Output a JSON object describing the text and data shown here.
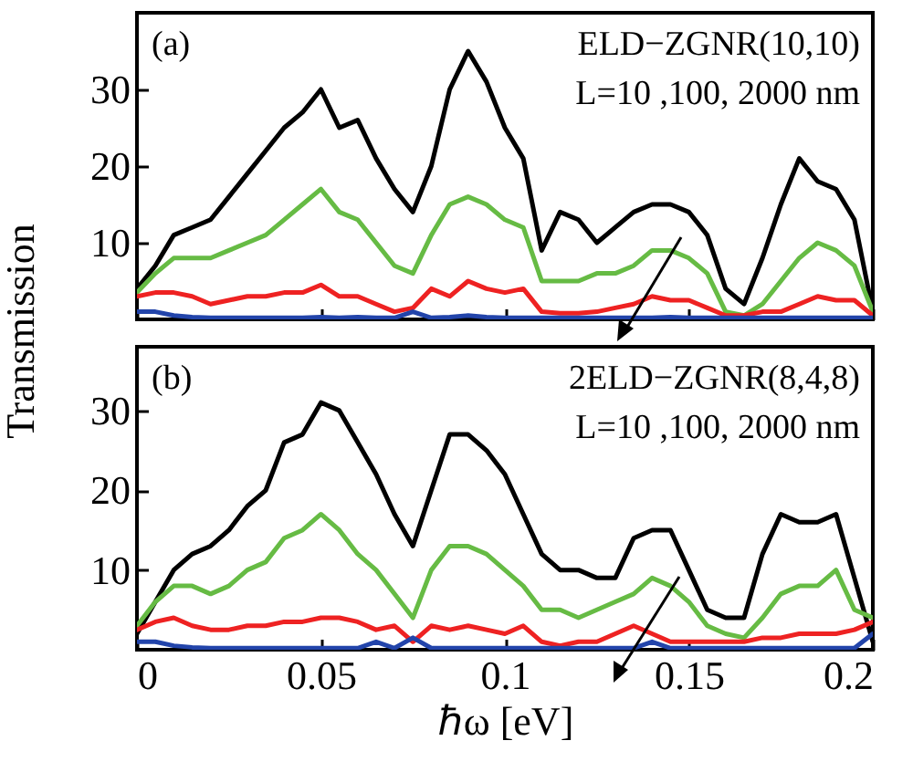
{
  "chart_data": [
    {
      "type": "line",
      "ylabel": "Transmission",
      "annotations": [
        "(a)",
        "ELD−ZGNR(10,10)",
        "L=10 ,100, 2000 nm"
      ],
      "x": [
        0,
        0.005,
        0.01,
        0.015,
        0.02,
        0.025,
        0.03,
        0.035,
        0.04,
        0.045,
        0.05,
        0.055,
        0.06,
        0.065,
        0.07,
        0.075,
        0.08,
        0.085,
        0.09,
        0.095,
        0.1,
        0.105,
        0.11,
        0.115,
        0.12,
        0.125,
        0.13,
        0.135,
        0.14,
        0.145,
        0.15,
        0.155,
        0.16,
        0.165,
        0.17,
        0.175,
        0.18,
        0.185,
        0.19,
        0.195,
        0.2
      ],
      "xlim": [
        0,
        0.2
      ],
      "xticks": [
        0,
        0.05,
        0.1,
        0.15,
        0.2
      ],
      "ylim": [
        0,
        40
      ],
      "yticks": [
        10,
        20,
        30
      ],
      "tick_labels": "y",
      "series": [
        {
          "color": "#000000",
          "values": [
            4,
            7,
            11,
            12,
            13,
            16,
            19,
            22,
            25,
            27,
            30,
            25,
            26,
            21,
            17,
            14,
            20,
            30,
            35,
            31,
            25,
            21,
            9,
            14,
            13,
            10,
            12,
            14,
            15,
            15,
            14,
            11,
            4,
            2,
            8,
            15,
            21,
            18,
            17,
            13,
            1
          ]
        },
        {
          "color": "#66bb44",
          "values": [
            3.5,
            6,
            8,
            8,
            8,
            9,
            10,
            11,
            13,
            15,
            17,
            14,
            13,
            10,
            7,
            6,
            11,
            15,
            16,
            15,
            13,
            12,
            5,
            5,
            5,
            6,
            6,
            7,
            9,
            9,
            8,
            6,
            1,
            0.5,
            2,
            5,
            8,
            10,
            9,
            7,
            1
          ]
        },
        {
          "color": "#ee2222",
          "values": [
            3,
            3.5,
            3.5,
            3,
            2,
            2.5,
            3,
            3,
            3.5,
            3.5,
            4.5,
            3,
            3,
            2,
            1,
            1.5,
            4,
            3,
            5,
            4,
            3.5,
            4,
            1,
            0.8,
            0.8,
            1,
            1.5,
            2,
            3,
            2.5,
            2.5,
            1.5,
            0.5,
            0.5,
            1,
            1,
            2,
            3,
            2.5,
            2.5,
            0.5
          ]
        },
        {
          "color": "#2244aa",
          "values": [
            1,
            1,
            0.5,
            0.3,
            0.2,
            0.2,
            0.2,
            0.2,
            0.2,
            0.2,
            0.3,
            0.2,
            0.3,
            0.2,
            0.2,
            1,
            0.2,
            0.3,
            0.5,
            0.3,
            0.2,
            0.2,
            0.2,
            0.2,
            0.2,
            0.2,
            0.2,
            0.2,
            0.2,
            0.3,
            0.2,
            0.2,
            0.2,
            0.2,
            0.2,
            0.2,
            0.2,
            0.2,
            0.2,
            0.2,
            0.2
          ]
        }
      ]
    },
    {
      "type": "line",
      "xlabel": "ℏω [eV]",
      "annotations": [
        "(b)",
        "2ELD−ZGNR(8,4,8)",
        "L=10 ,100, 2000 nm"
      ],
      "x": [
        0,
        0.005,
        0.01,
        0.015,
        0.02,
        0.025,
        0.03,
        0.035,
        0.04,
        0.045,
        0.05,
        0.055,
        0.06,
        0.065,
        0.07,
        0.075,
        0.08,
        0.085,
        0.09,
        0.095,
        0.1,
        0.105,
        0.11,
        0.115,
        0.12,
        0.125,
        0.13,
        0.135,
        0.14,
        0.145,
        0.15,
        0.155,
        0.16,
        0.165,
        0.17,
        0.175,
        0.18,
        0.185,
        0.19,
        0.195,
        0.2
      ],
      "xlim": [
        0,
        0.2
      ],
      "xticks": [
        0,
        0.05,
        0.1,
        0.15,
        0.2
      ],
      "ylim": [
        0,
        38
      ],
      "yticks": [
        10,
        20,
        30
      ],
      "series": [
        {
          "color": "#000000",
          "values": [
            2,
            6,
            10,
            12,
            13,
            15,
            18,
            20,
            26,
            27,
            31,
            30,
            26,
            22,
            17,
            13,
            20,
            27,
            27,
            25,
            22,
            17,
            12,
            10,
            10,
            9,
            9,
            14,
            15,
            15,
            10,
            5,
            4,
            4,
            12,
            17,
            16,
            16,
            17,
            9,
            1
          ]
        },
        {
          "color": "#66bb44",
          "values": [
            3,
            6,
            8,
            8,
            7,
            8,
            10,
            11,
            14,
            15,
            17,
            15,
            12,
            10,
            7,
            4,
            10,
            13,
            13,
            12,
            10,
            8,
            5,
            5,
            4,
            5,
            6,
            7,
            9,
            8,
            6,
            3,
            2,
            1.5,
            4,
            7,
            8,
            8,
            10,
            5,
            4
          ]
        },
        {
          "color": "#ee2222",
          "values": [
            2.5,
            3.5,
            4,
            3,
            2.5,
            2.5,
            3,
            3,
            3.5,
            3.5,
            4,
            4,
            3.5,
            2.5,
            3,
            1,
            3,
            2.5,
            3,
            2.5,
            2,
            3,
            1,
            0.5,
            1,
            1,
            2,
            3,
            2,
            1,
            1,
            1,
            1,
            1,
            1.5,
            1.5,
            2,
            2,
            2,
            2.5,
            3.5
          ]
        },
        {
          "color": "#2244aa",
          "values": [
            1,
            1,
            0.5,
            0.3,
            0.2,
            0.2,
            0.2,
            0.2,
            0.2,
            0.2,
            0.2,
            0.2,
            0.2,
            1,
            0.2,
            1.5,
            0.2,
            0.2,
            0.2,
            0.2,
            0.2,
            0.2,
            0.2,
            0.2,
            0.2,
            0.2,
            0.2,
            0.2,
            1,
            0.2,
            0.2,
            0.2,
            0.2,
            0.2,
            0.2,
            0.2,
            0.2,
            0.2,
            0.2,
            0.2,
            2
          ]
        }
      ]
    }
  ]
}
